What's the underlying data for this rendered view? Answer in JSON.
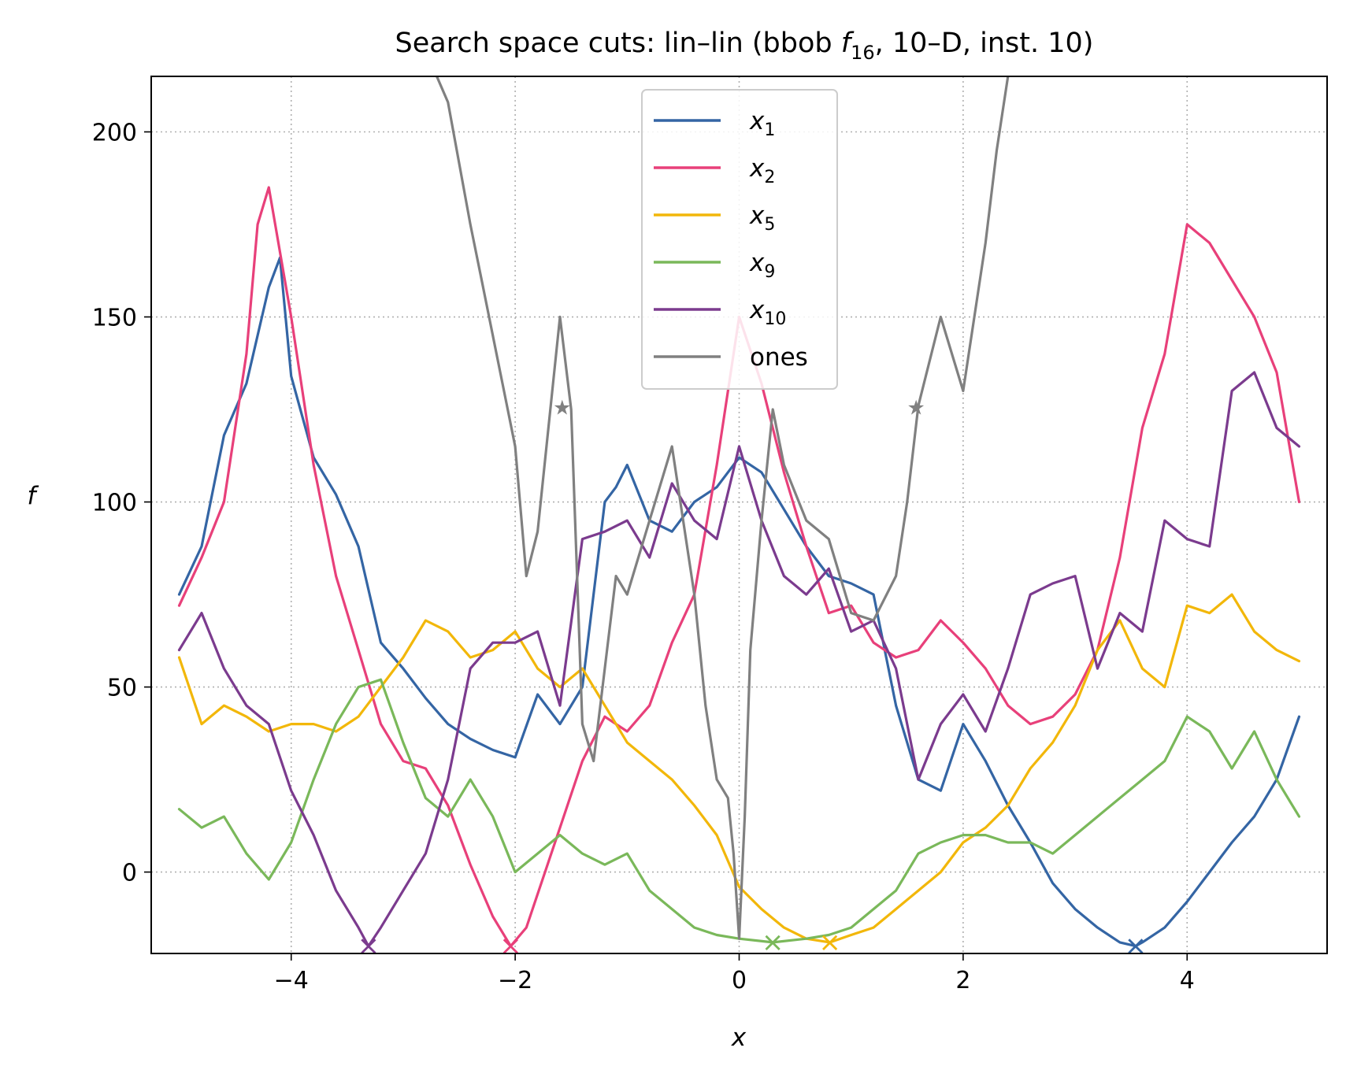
{
  "chart_data": {
    "type": "line",
    "title": {
      "prefix": "Search space cuts: lin–lin (bbob ",
      "func": "f",
      "func_sub": "16",
      "suffix": ", 10–D, inst. 10)"
    },
    "xlabel": "x",
    "ylabel": "f",
    "xlim": [
      -5.25,
      5.25
    ],
    "ylim": [
      -22,
      215
    ],
    "xticks": [
      -4,
      -2,
      0,
      2,
      4
    ],
    "xtick_labels": [
      "−4",
      "−2",
      "0",
      "2",
      "4"
    ],
    "yticks": [
      0,
      50,
      100,
      150,
      200
    ],
    "ytick_labels": [
      "0",
      "50",
      "100",
      "150",
      "200"
    ],
    "grid": true,
    "legend_position": "upper-center",
    "series": [
      {
        "name": "x",
        "name_sub": "1",
        "color": "#3465a4",
        "x": [
          -5,
          -4.8,
          -4.6,
          -4.4,
          -4.2,
          -4.1,
          -4,
          -3.8,
          -3.6,
          -3.4,
          -3.2,
          -3,
          -2.8,
          -2.6,
          -2.4,
          -2.2,
          -2,
          -1.8,
          -1.6,
          -1.4,
          -1.2,
          -1.1,
          -1,
          -0.8,
          -0.6,
          -0.4,
          -0.2,
          0,
          0.2,
          0.4,
          0.6,
          0.8,
          1,
          1.2,
          1.4,
          1.6,
          1.8,
          2,
          2.2,
          2.4,
          2.6,
          2.8,
          3,
          3.2,
          3.4,
          3.54,
          3.6,
          3.8,
          4,
          4.2,
          4.4,
          4.6,
          4.8,
          5
        ],
        "y": [
          75,
          88,
          118,
          132,
          158,
          166,
          134,
          112,
          102,
          88,
          62,
          55,
          47,
          40,
          36,
          33,
          31,
          48,
          40,
          50,
          100,
          104,
          110,
          95,
          92,
          100,
          104,
          112,
          108,
          98,
          88,
          80,
          78,
          75,
          45,
          25,
          22,
          40,
          30,
          18,
          8,
          -3,
          -10,
          -15,
          -19,
          -20,
          -19,
          -15,
          -8,
          0,
          8,
          15,
          25,
          42
        ]
      },
      {
        "name": "x",
        "name_sub": "2",
        "color": "#e8407a",
        "x": [
          -5,
          -4.8,
          -4.6,
          -4.4,
          -4.3,
          -4.2,
          -4,
          -3.8,
          -3.6,
          -3.4,
          -3.2,
          -3,
          -2.8,
          -2.6,
          -2.4,
          -2.2,
          -2.04,
          -1.9,
          -1.6,
          -1.4,
          -1.2,
          -1,
          -0.8,
          -0.6,
          -0.4,
          -0.2,
          0,
          0.2,
          0.4,
          0.6,
          0.8,
          1,
          1.2,
          1.4,
          1.6,
          1.8,
          2,
          2.2,
          2.4,
          2.6,
          2.8,
          3,
          3.2,
          3.4,
          3.6,
          3.8,
          4,
          4.2,
          4.4,
          4.6,
          4.8,
          5
        ],
        "y": [
          72,
          85,
          100,
          140,
          175,
          185,
          150,
          110,
          80,
          60,
          40,
          30,
          28,
          18,
          2,
          -12,
          -20,
          -15,
          12,
          30,
          42,
          38,
          45,
          62,
          75,
          110,
          150,
          132,
          108,
          88,
          70,
          72,
          62,
          58,
          60,
          68,
          62,
          55,
          45,
          40,
          42,
          48,
          60,
          85,
          120,
          140,
          175,
          170,
          160,
          150,
          135,
          100
        ]
      },
      {
        "name": "x",
        "name_sub": "5",
        "color": "#f2b70a",
        "x": [
          -5,
          -4.8,
          -4.6,
          -4.4,
          -4.2,
          -4,
          -3.8,
          -3.6,
          -3.4,
          -3.2,
          -3,
          -2.8,
          -2.6,
          -2.4,
          -2.2,
          -2,
          -1.8,
          -1.6,
          -1.4,
          -1.2,
          -1,
          -0.8,
          -0.6,
          -0.4,
          -0.2,
          0,
          0.2,
          0.4,
          0.6,
          0.81,
          1,
          1.2,
          1.4,
          1.6,
          1.8,
          2,
          2.2,
          2.4,
          2.6,
          2.8,
          3,
          3.2,
          3.4,
          3.6,
          3.8,
          4,
          4.2,
          4.4,
          4.6,
          4.8,
          5
        ],
        "y": [
          58,
          40,
          45,
          42,
          38,
          40,
          40,
          38,
          42,
          50,
          58,
          68,
          65,
          58,
          60,
          65,
          55,
          50,
          55,
          45,
          35,
          30,
          25,
          18,
          10,
          -4,
          -10,
          -15,
          -18,
          -19,
          -17,
          -15,
          -10,
          -5,
          0,
          8,
          12,
          18,
          28,
          35,
          45,
          60,
          68,
          55,
          50,
          72,
          70,
          75,
          65,
          60,
          57
        ]
      },
      {
        "name": "x",
        "name_sub": "9",
        "color": "#7ab85a",
        "x": [
          -5,
          -4.8,
          -4.6,
          -4.4,
          -4.2,
          -4,
          -3.8,
          -3.6,
          -3.4,
          -3.2,
          -3,
          -2.8,
          -2.6,
          -2.4,
          -2.2,
          -2,
          -1.8,
          -1.6,
          -1.4,
          -1.2,
          -1,
          -0.8,
          -0.6,
          -0.4,
          -0.2,
          0,
          0.3,
          0.6,
          0.8,
          1,
          1.2,
          1.4,
          1.6,
          1.8,
          2,
          2.2,
          2.4,
          2.6,
          2.8,
          3,
          3.2,
          3.4,
          3.6,
          3.8,
          4,
          4.2,
          4.4,
          4.6,
          4.8,
          5
        ],
        "y": [
          17,
          12,
          15,
          5,
          -2,
          8,
          25,
          40,
          50,
          52,
          35,
          20,
          15,
          25,
          15,
          0,
          5,
          10,
          5,
          2,
          5,
          -5,
          -10,
          -15,
          -17,
          -18,
          -19,
          -18,
          -17,
          -15,
          -10,
          -5,
          5,
          8,
          10,
          10,
          8,
          8,
          5,
          10,
          15,
          20,
          25,
          30,
          42,
          38,
          28,
          38,
          25,
          15
        ]
      },
      {
        "name": "x",
        "name_sub": "10",
        "color": "#7b3b8e",
        "x": [
          -5,
          -4.9,
          -4.8,
          -4.6,
          -4.4,
          -4.2,
          -4,
          -3.8,
          -3.6,
          -3.4,
          -3.31,
          -3.2,
          -3,
          -2.8,
          -2.6,
          -2.4,
          -2.2,
          -2,
          -1.8,
          -1.6,
          -1.4,
          -1.2,
          -1,
          -0.8,
          -0.6,
          -0.4,
          -0.2,
          0,
          0.2,
          0.4,
          0.6,
          0.8,
          1,
          1.2,
          1.4,
          1.6,
          1.8,
          2,
          2.2,
          2.4,
          2.6,
          2.8,
          3,
          3.2,
          3.4,
          3.6,
          3.8,
          4,
          4.2,
          4.4,
          4.6,
          4.8,
          5
        ],
        "y": [
          60,
          65,
          70,
          55,
          45,
          40,
          22,
          10,
          -5,
          -15,
          -20,
          -15,
          -5,
          5,
          25,
          55,
          62,
          62,
          65,
          45,
          90,
          92,
          95,
          85,
          105,
          95,
          90,
          115,
          95,
          80,
          75,
          82,
          65,
          68,
          55,
          25,
          40,
          48,
          38,
          55,
          75,
          78,
          80,
          55,
          70,
          65,
          95,
          90,
          88,
          130,
          135,
          120,
          115
        ]
      },
      {
        "name": "ones",
        "color": "#808080",
        "x": [
          -2.7,
          -2.6,
          -2.4,
          -2.3,
          -2.2,
          -2,
          -1.9,
          -1.8,
          -1.6,
          -1.5,
          -1.4,
          -1.3,
          -1.2,
          -1.1,
          -1,
          -0.8,
          -0.6,
          -0.4,
          -0.3,
          -0.2,
          -0.1,
          -0.05,
          0,
          0.05,
          0.1,
          0.2,
          0.3,
          0.4,
          0.6,
          0.8,
          1,
          1.2,
          1.4,
          1.5,
          1.6,
          1.8,
          2,
          2.2,
          2.3,
          2.4
        ],
        "y": [
          215,
          208,
          175,
          160,
          145,
          115,
          80,
          92,
          150,
          125,
          40,
          30,
          55,
          80,
          75,
          95,
          115,
          75,
          45,
          25,
          20,
          5,
          -18,
          15,
          60,
          95,
          125,
          110,
          95,
          90,
          70,
          68,
          80,
          100,
          126,
          150,
          130,
          170,
          195,
          215
        ]
      }
    ],
    "markers": [
      {
        "series": 0,
        "x": 3.54,
        "y": -20,
        "symbol": "×"
      },
      {
        "series": 1,
        "x": -2.04,
        "y": -20,
        "symbol": "×"
      },
      {
        "series": 2,
        "x": 0.81,
        "y": -19,
        "symbol": "×"
      },
      {
        "series": 3,
        "x": 0.3,
        "y": -19,
        "symbol": "×"
      },
      {
        "series": 4,
        "x": -3.31,
        "y": -20,
        "symbol": "×"
      },
      {
        "series": 5,
        "x": -1.58,
        "y": 126,
        "symbol": "★"
      },
      {
        "series": 5,
        "x": 1.58,
        "y": 126,
        "symbol": "★"
      }
    ]
  }
}
